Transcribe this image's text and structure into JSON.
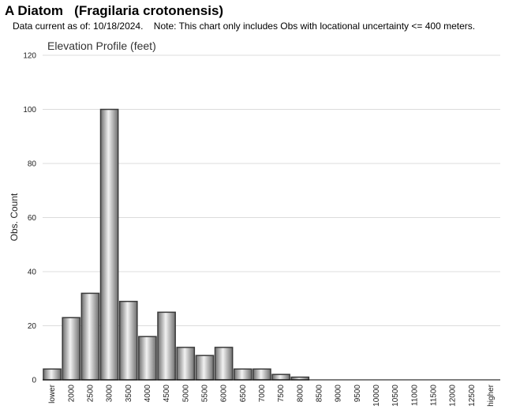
{
  "header": {
    "title": "A Diatom   (Fragilaria crotonensis)",
    "subtitle": "Data current as of: 10/18/2024.    Note: This chart only includes Obs with locational uncertainty <= 400 meters."
  },
  "chart_data": {
    "type": "bar",
    "title": "Elevation Profile (feet)",
    "xlabel": "",
    "ylabel": "Obs. Count",
    "ylim": [
      0,
      120
    ],
    "yticks": [
      0,
      20,
      40,
      60,
      80,
      100,
      120
    ],
    "grid": true,
    "categories": [
      "lower",
      "2000",
      "2500",
      "3000",
      "3500",
      "4000",
      "4500",
      "5000",
      "5500",
      "6000",
      "6500",
      "7000",
      "7500",
      "8000",
      "8500",
      "9000",
      "9500",
      "10000",
      "10500",
      "11000",
      "11500",
      "12000",
      "12500",
      "higher"
    ],
    "values": [
      4,
      23,
      32,
      100,
      29,
      16,
      25,
      12,
      9,
      12,
      4,
      4,
      2,
      1,
      0,
      0,
      0,
      0,
      0,
      0,
      0,
      0,
      0,
      0
    ],
    "colors": {
      "bar_dark": "#6e6e6e",
      "bar_light": "#f2f2f2",
      "bar_stroke": "#3a3a3a",
      "grid": "#dcdcdc",
      "axis": "#000000"
    }
  }
}
